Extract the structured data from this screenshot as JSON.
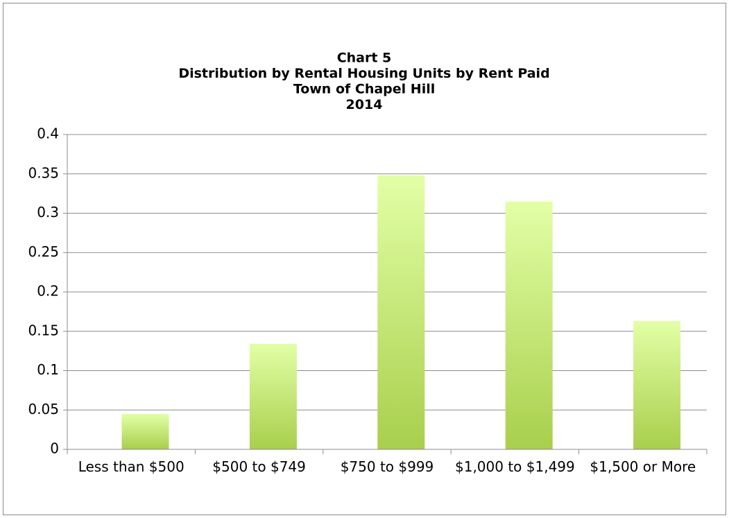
{
  "chart_data": {
    "type": "bar",
    "title": [
      "Chart 5",
      "Distribution by Rental Housing Units by Rent Paid",
      "Town of Chapel Hill",
      "2014"
    ],
    "categories": [
      "Less than $500",
      "$500 to $749",
      "$750 to $999",
      "$1,000 to $1,499",
      "$1,500 or More"
    ],
    "values": [
      0.045,
      0.134,
      0.348,
      0.315,
      0.163
    ],
    "color": [
      "#e2ffa6",
      "#a8cf4c"
    ],
    "ylim": [
      0,
      0.4
    ],
    "yticks": [
      0,
      0.05,
      0.1,
      0.15,
      0.2,
      0.25,
      0.3,
      0.35,
      0.4
    ],
    "grid": true
  }
}
